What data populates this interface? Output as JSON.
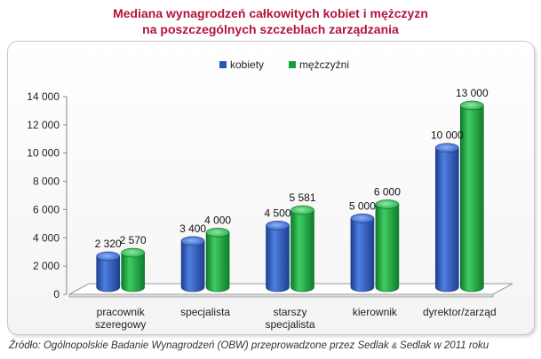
{
  "title_line1": "Mediana wynagrodzeń całkowitych kobiet i mężczyzn",
  "title_line2": "na poszczególnych szczeblach zarządzania",
  "source": {
    "part1": "Źródło: Ogólnopolskie Badanie Wynagrodzeń (OBW) przeprowadzone przez Sedlak ",
    "amp": "&",
    "part2": " Sedlak w 2011 roku"
  },
  "colors": {
    "kobiety": "#2a55b8",
    "mezczyzni": "#18a03c"
  },
  "chart_data": {
    "type": "bar",
    "title": "Mediana wynagrodzeń całkowitych kobiet i mężczyzn na poszczególnych szczeblach zarządzania",
    "categories": [
      [
        "pracownik",
        "szeregowy"
      ],
      [
        "specjalista"
      ],
      [
        "starszy",
        "specjalista"
      ],
      [
        "kierownik"
      ],
      [
        "dyrektor/zarząd"
      ]
    ],
    "series": [
      {
        "name": "kobiety",
        "values": [
          2320,
          3400,
          4500,
          5000,
          10000
        ],
        "labels": [
          "2 320",
          "3 400",
          "4 500",
          "5 000",
          "10 000"
        ]
      },
      {
        "name": "mężczyźni",
        "values": [
          2570,
          4000,
          5581,
          6000,
          13000
        ],
        "labels": [
          "2 570",
          "4 000",
          "5 581",
          "6 000",
          "13 000"
        ]
      }
    ],
    "ylim": [
      0,
      14000
    ],
    "yticks": [
      0,
      2000,
      4000,
      6000,
      8000,
      10000,
      12000,
      14000
    ],
    "ytick_labels": [
      "0",
      "2 000",
      "4 000",
      "6 000",
      "8 000",
      "10 000",
      "12 000",
      "14 000"
    ],
    "legend_position": "top-center",
    "grid": false
  }
}
